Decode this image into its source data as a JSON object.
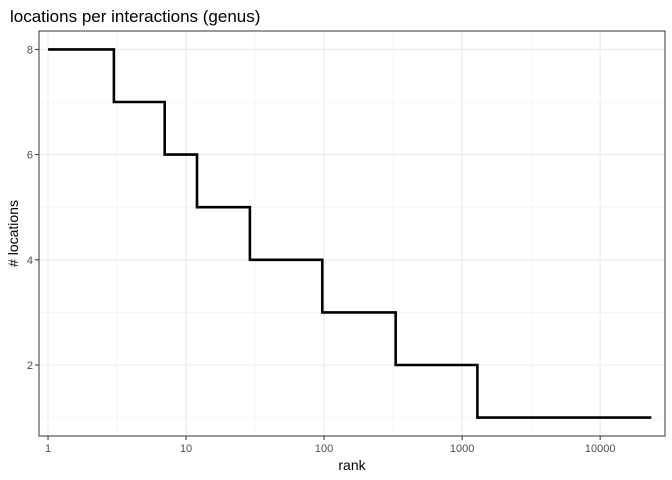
{
  "chart_data": {
    "type": "line",
    "title": "locations per interactions (genus)",
    "xlabel": "rank",
    "ylabel": "# locations",
    "x_scale": "log10",
    "xlim": [
      0.86,
      29500
    ],
    "ylim": [
      0.65,
      8.35
    ],
    "x_ticks": [
      1,
      10,
      100,
      1000,
      10000
    ],
    "x_tick_labels": [
      "1",
      "10",
      "100",
      "1000",
      "10000"
    ],
    "x_minor_ticks": [
      3.16,
      31.6,
      316,
      3160
    ],
    "y_ticks": [
      2,
      4,
      6,
      8
    ],
    "y_tick_labels": [
      "2",
      "4",
      "6",
      "8"
    ],
    "y_minor_ticks": [
      1,
      3,
      5,
      7
    ],
    "grid": true,
    "line_shape": "step",
    "series": [
      {
        "color": "#000000",
        "points": [
          {
            "x": 1,
            "y": 8
          },
          {
            "x": 3,
            "y": 8
          },
          {
            "x": 3,
            "y": 7
          },
          {
            "x": 7,
            "y": 7
          },
          {
            "x": 7,
            "y": 6
          },
          {
            "x": 12,
            "y": 6
          },
          {
            "x": 12,
            "y": 5
          },
          {
            "x": 29,
            "y": 5
          },
          {
            "x": 29,
            "y": 4
          },
          {
            "x": 97,
            "y": 4
          },
          {
            "x": 97,
            "y": 3
          },
          {
            "x": 330,
            "y": 3
          },
          {
            "x": 330,
            "y": 2
          },
          {
            "x": 1290,
            "y": 2
          },
          {
            "x": 1290,
            "y": 1
          },
          {
            "x": 23500,
            "y": 1
          }
        ]
      }
    ]
  }
}
